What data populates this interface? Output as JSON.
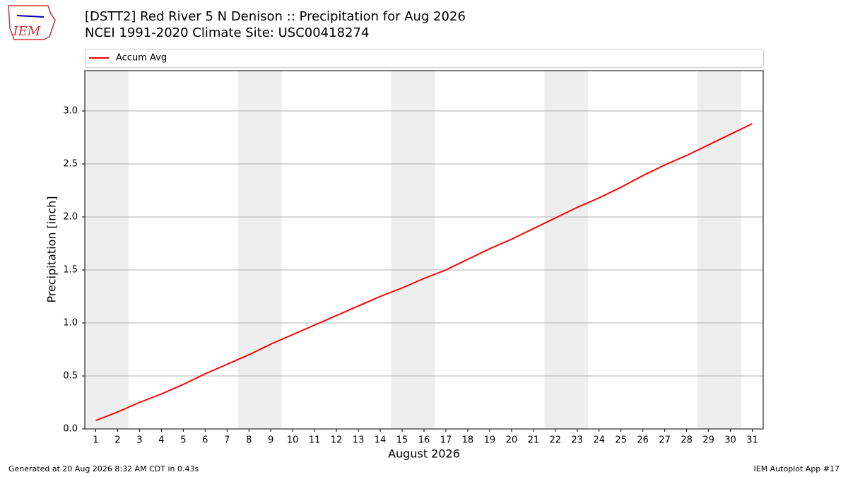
{
  "logo": "IEM",
  "footer": {
    "left": "Generated at 20 Aug 2026 8:32 AM CDT in 0.43s",
    "right": "IEM Autoplot App #17"
  },
  "chart_data": {
    "type": "line",
    "title": "[DSTT2] Red River 5 N Denison :: Precipitation for Aug 2026",
    "subtitle": "NCEI 1991-2020 Climate Site: USC00418274",
    "x_label": "August 2026",
    "y_label": "Precipitation [inch]",
    "x": [
      1,
      2,
      3,
      4,
      5,
      6,
      7,
      8,
      9,
      10,
      11,
      12,
      13,
      14,
      15,
      16,
      17,
      18,
      19,
      20,
      21,
      22,
      23,
      24,
      25,
      26,
      27,
      28,
      29,
      30,
      31
    ],
    "series": [
      {
        "name": "Accum Avg",
        "color": "#ff0000",
        "values": [
          0.08,
          0.16,
          0.25,
          0.33,
          0.42,
          0.52,
          0.61,
          0.7,
          0.8,
          0.89,
          0.98,
          1.07,
          1.16,
          1.25,
          1.33,
          1.42,
          1.5,
          1.6,
          1.7,
          1.79,
          1.89,
          1.99,
          2.09,
          2.18,
          2.28,
          2.39,
          2.49,
          2.58,
          2.68,
          2.78,
          2.88
        ]
      }
    ],
    "xlim": [
      0.5,
      31.5
    ],
    "ylim": [
      0,
      3.38
    ],
    "xticks": [
      1,
      2,
      3,
      4,
      5,
      6,
      7,
      8,
      9,
      10,
      11,
      12,
      13,
      14,
      15,
      16,
      17,
      18,
      19,
      20,
      21,
      22,
      23,
      24,
      25,
      26,
      27,
      28,
      29,
      30,
      31
    ],
    "yticks": [
      {
        "value": 0,
        "label": "0.0"
      },
      0.5,
      {
        "value": 1,
        "label": "1.0"
      },
      1.5,
      {
        "value": 2,
        "label": "2.0"
      },
      2.5,
      {
        "value": 3,
        "label": "3.0"
      }
    ],
    "grid": true,
    "legend": "top",
    "shaded_spans": [
      [
        0.5,
        2.5
      ],
      [
        7.5,
        9.5
      ],
      [
        14.5,
        16.5
      ],
      [
        21.5,
        23.5
      ],
      [
        28.5,
        30.5
      ]
    ],
    "shade_color": "#eeeeee"
  }
}
